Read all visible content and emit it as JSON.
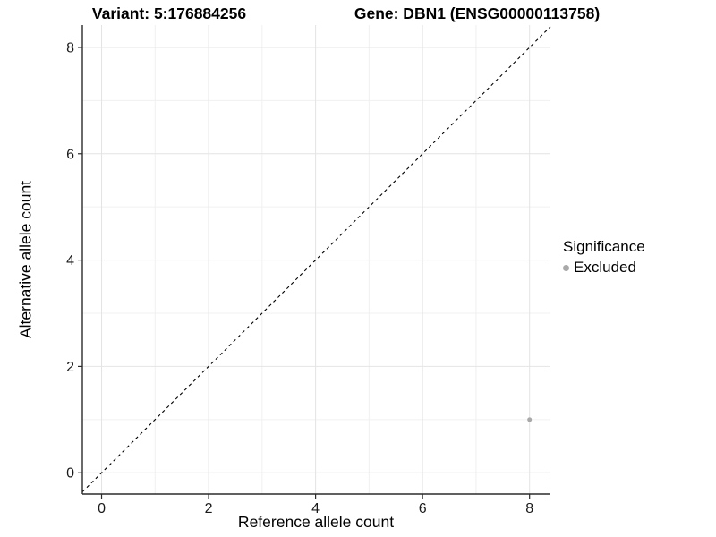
{
  "figure": {
    "title_left": "Variant: 5:176884256",
    "title_right": "Gene: DBN1 (ENSG00000113758)"
  },
  "chart_data": {
    "type": "scatter",
    "title": "Variant: 5:176884256  /  Gene: DBN1 (ENSG00000113758)",
    "xlabel": "Reference allele count",
    "ylabel": "Alternative allele count",
    "xlim": [
      -0.36,
      8.39
    ],
    "ylim": [
      -0.4,
      8.42
    ],
    "x_major_ticks": [
      0,
      2,
      4,
      6,
      8
    ],
    "y_major_ticks": [
      0,
      2,
      4,
      6,
      8
    ],
    "x_minor_ticks": [
      1,
      3,
      5,
      7
    ],
    "y_minor_ticks": [
      1,
      3,
      5,
      7
    ],
    "grid": true,
    "points": [
      {
        "x": 8,
        "y": 1,
        "series": "Excluded"
      }
    ],
    "identity_line": {
      "slope": 1,
      "intercept": 0,
      "style": "dashed",
      "color": "#000000"
    },
    "legend": {
      "title": "Significance",
      "position": "right",
      "items": [
        {
          "label": "Excluded",
          "color": "#a9a9a9"
        }
      ]
    },
    "colors": {
      "background": "#ffffff",
      "grid_major": "#e4e4e4",
      "grid_minor": "#f0f0f0",
      "axis_line": "#2b2b2b",
      "tick_text": "#1a1a1a",
      "point_excluded": "#a9a9a9"
    }
  }
}
